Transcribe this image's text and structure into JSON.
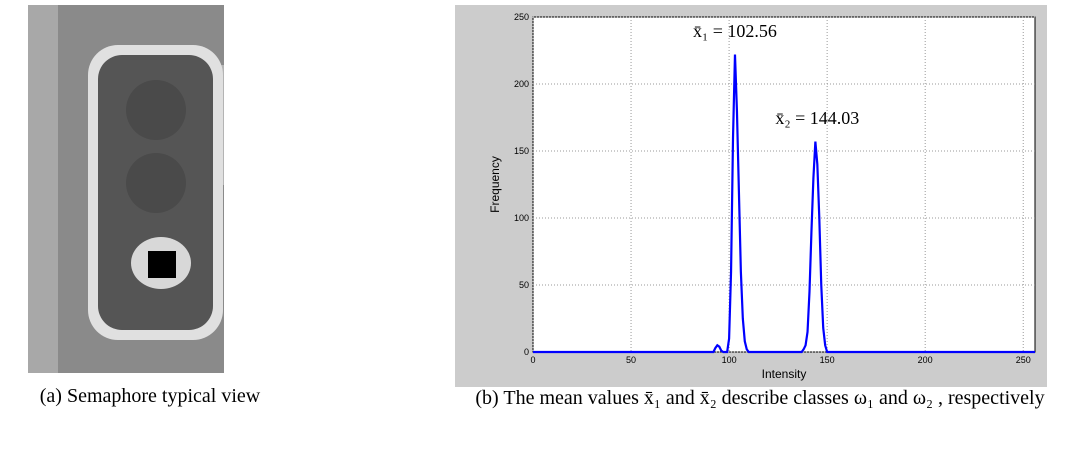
{
  "panels": [
    {
      "caption": "(a) Semaphore typical view"
    },
    {
      "caption": "(b) The mean values x̄₁ and x̄₂ describe classes ω₁ and ω₂ , respectively"
    }
  ],
  "chart_data": {
    "type": "line",
    "xlabel": "Intensity",
    "ylabel": "Frequency",
    "annotations": [
      "x̄₁ = 102.56",
      "x̄₂ = 144.03"
    ],
    "x": [
      0,
      92,
      93,
      94,
      95,
      96,
      97,
      99,
      100,
      101,
      102,
      103,
      104,
      105,
      106,
      107,
      108,
      109,
      110,
      137,
      138,
      139,
      140,
      141,
      142,
      143,
      144,
      145,
      146,
      147,
      148,
      149,
      150,
      256
    ],
    "series": [
      {
        "color": "#0000ff",
        "values": [
          0,
          0,
          3,
          5,
          4,
          1,
          0,
          0,
          10,
          60,
          160,
          222,
          180,
          120,
          60,
          25,
          8,
          2,
          0,
          0,
          2,
          5,
          15,
          45,
          90,
          130,
          157,
          140,
          100,
          50,
          18,
          5,
          0,
          0
        ]
      }
    ],
    "xlim": [
      0,
      256
    ],
    "ylim": [
      0,
      250
    ],
    "xticks": [
      0,
      50,
      100,
      150,
      200,
      250
    ],
    "yticks": [
      0,
      50,
      100,
      150,
      200,
      250
    ],
    "grid": true
  }
}
